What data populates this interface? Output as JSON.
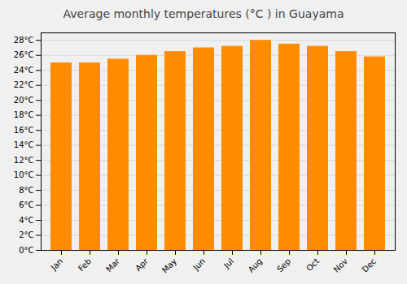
{
  "chart_data": {
    "type": "bar",
    "title": "Average monthly temperatures (°C ) in Guayama",
    "categories": [
      "Jan",
      "Feb",
      "Mar",
      "Apr",
      "May",
      "Jun",
      "Jul",
      "Aug",
      "Sep",
      "Oct",
      "Nov",
      "Dec"
    ],
    "values": [
      25.0,
      25.0,
      25.5,
      26.0,
      26.5,
      27.0,
      27.2,
      28.0,
      27.5,
      27.2,
      26.5,
      25.8
    ],
    "color": "#FF8C00",
    "ylim": [
      0,
      29
    ],
    "yticks": [
      {
        "value": 0,
        "label": "0°C"
      },
      {
        "value": 2,
        "label": "2°C"
      },
      {
        "value": 4,
        "label": "4°C"
      },
      {
        "value": 6,
        "label": "6°C"
      },
      {
        "value": 8,
        "label": "8°C"
      },
      {
        "value": 10,
        "label": "10°C"
      },
      {
        "value": 12,
        "label": "12°C"
      },
      {
        "value": 14,
        "label": "14°C"
      },
      {
        "value": 16,
        "label": "16°C"
      },
      {
        "value": 18,
        "label": "18°C"
      },
      {
        "value": 20,
        "label": "20°C"
      },
      {
        "value": 22,
        "label": "22°C"
      },
      {
        "value": 24,
        "label": "24°C"
      },
      {
        "value": 26,
        "label": "26°C"
      },
      {
        "value": 28,
        "label": "28°C"
      }
    ],
    "grid": true
  }
}
